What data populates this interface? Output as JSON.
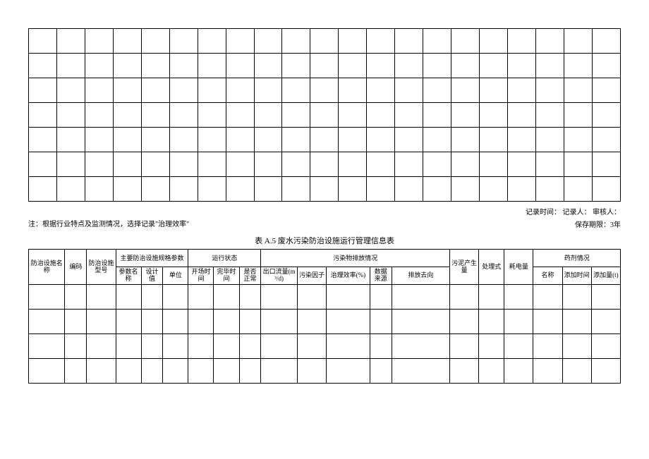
{
  "upper_table": {
    "cols": 21,
    "rows": 7
  },
  "meta": {
    "record_time_label": "记录时间：",
    "recorder_label": "记录人：",
    "auditor_label": "审核人："
  },
  "note": "注：根据行业特点及监测情况，选择记录\"治理效率\"",
  "retain": "保存期限：3年",
  "title": "表 A.5 废水污染防治设施运行管理信息表",
  "headers": {
    "facility_name": "防治设施名称",
    "code": "编码",
    "facility_model": "防治设施型号",
    "spec_group": "主要防治设施规格参数",
    "param_name": "参数名称",
    "design_value": "设计值",
    "unit": "单位",
    "run_status_group": "运行状态",
    "start_time": "开场时间",
    "end_time": "完毕时间",
    "is_normal": "是否正常",
    "emission_group": "污染物排放情况",
    "outlet_flow": "出口流量(m³/d)",
    "pollution_factor": "污染因子",
    "efficiency": "治理效率(%)",
    "data_source": "数据来源",
    "discharge_to": "排放去向",
    "sludge": "污泥产生量",
    "treat_mode": "处理式",
    "power": "耗电量",
    "reagent_group": "药剂情况",
    "reagent_name": "名称",
    "add_time": "添加时间",
    "add_amount": "添加量(t)"
  },
  "lower_rows": 4,
  "style": {
    "background_color": "#ffffff",
    "border_color": "#000000",
    "text_color": "#000000",
    "font_family": "SimSun",
    "title_fontsize": 11,
    "body_fontsize": 10,
    "header_fontsize": 9
  }
}
